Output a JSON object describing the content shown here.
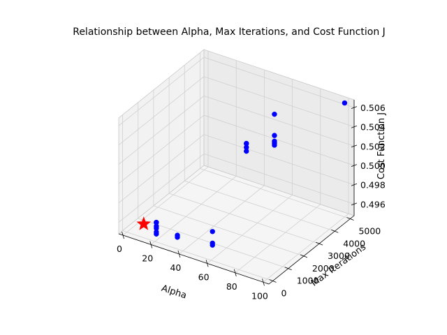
{
  "chart_data": {
    "type": "scatter",
    "projection": "3d",
    "title": "Relationship between Alpha, Max Iterations, and Cost Function J",
    "xlabel": "Alpha",
    "ylabel": "Max Iterations",
    "zlabel": "Cost Function J",
    "xlim": [
      -3,
      104
    ],
    "ylim": [
      -250,
      5250
    ],
    "zlim": [
      0.4948,
      0.5068
    ],
    "xticks": [
      "0",
      "20",
      "40",
      "60",
      "80",
      "100"
    ],
    "yticks": [
      "0",
      "1000",
      "2000",
      "3000",
      "4000",
      "5000"
    ],
    "zticks": [
      "0.496",
      "0.498",
      "0.500",
      "0.502",
      "0.504",
      "0.506"
    ],
    "grid": true,
    "series": [
      {
        "color": "#0000ff",
        "marker": "circle",
        "points": [
          {
            "x": 100,
            "y": 5000,
            "z": 0.5066
          },
          {
            "x": 50,
            "y": 5000,
            "z": 0.503
          },
          {
            "x": 50,
            "y": 5000,
            "z": 0.5008
          },
          {
            "x": 50,
            "y": 5000,
            "z": 0.5002
          },
          {
            "x": 50,
            "y": 5000,
            "z": 0.5
          },
          {
            "x": 50,
            "y": 5000,
            "z": 0.4998
          },
          {
            "x": 30,
            "y": 5000,
            "z": 0.499
          },
          {
            "x": 30,
            "y": 5000,
            "z": 0.499
          },
          {
            "x": 30,
            "y": 5000,
            "z": 0.4986
          },
          {
            "x": 30,
            "y": 5000,
            "z": 0.4982
          },
          {
            "x": 50,
            "y": 1000,
            "z": 0.496
          },
          {
            "x": 50,
            "y": 1000,
            "z": 0.4948
          },
          {
            "x": 50,
            "y": 1000,
            "z": 0.4946
          },
          {
            "x": 25,
            "y": 1000,
            "z": 0.4944
          },
          {
            "x": 25,
            "y": 1000,
            "z": 0.4942
          },
          {
            "x": 10,
            "y": 1000,
            "z": 0.495
          },
          {
            "x": 10,
            "y": 1000,
            "z": 0.495
          },
          {
            "x": 10,
            "y": 1000,
            "z": 0.4946
          },
          {
            "x": 10,
            "y": 1000,
            "z": 0.4944
          },
          {
            "x": 10,
            "y": 1000,
            "z": 0.494
          },
          {
            "x": 10,
            "y": 1000,
            "z": 0.4938
          }
        ]
      },
      {
        "color": "#ff0000",
        "marker": "star",
        "points": [
          {
            "x": 1,
            "y": 1000,
            "z": 0.4944
          }
        ]
      }
    ]
  }
}
